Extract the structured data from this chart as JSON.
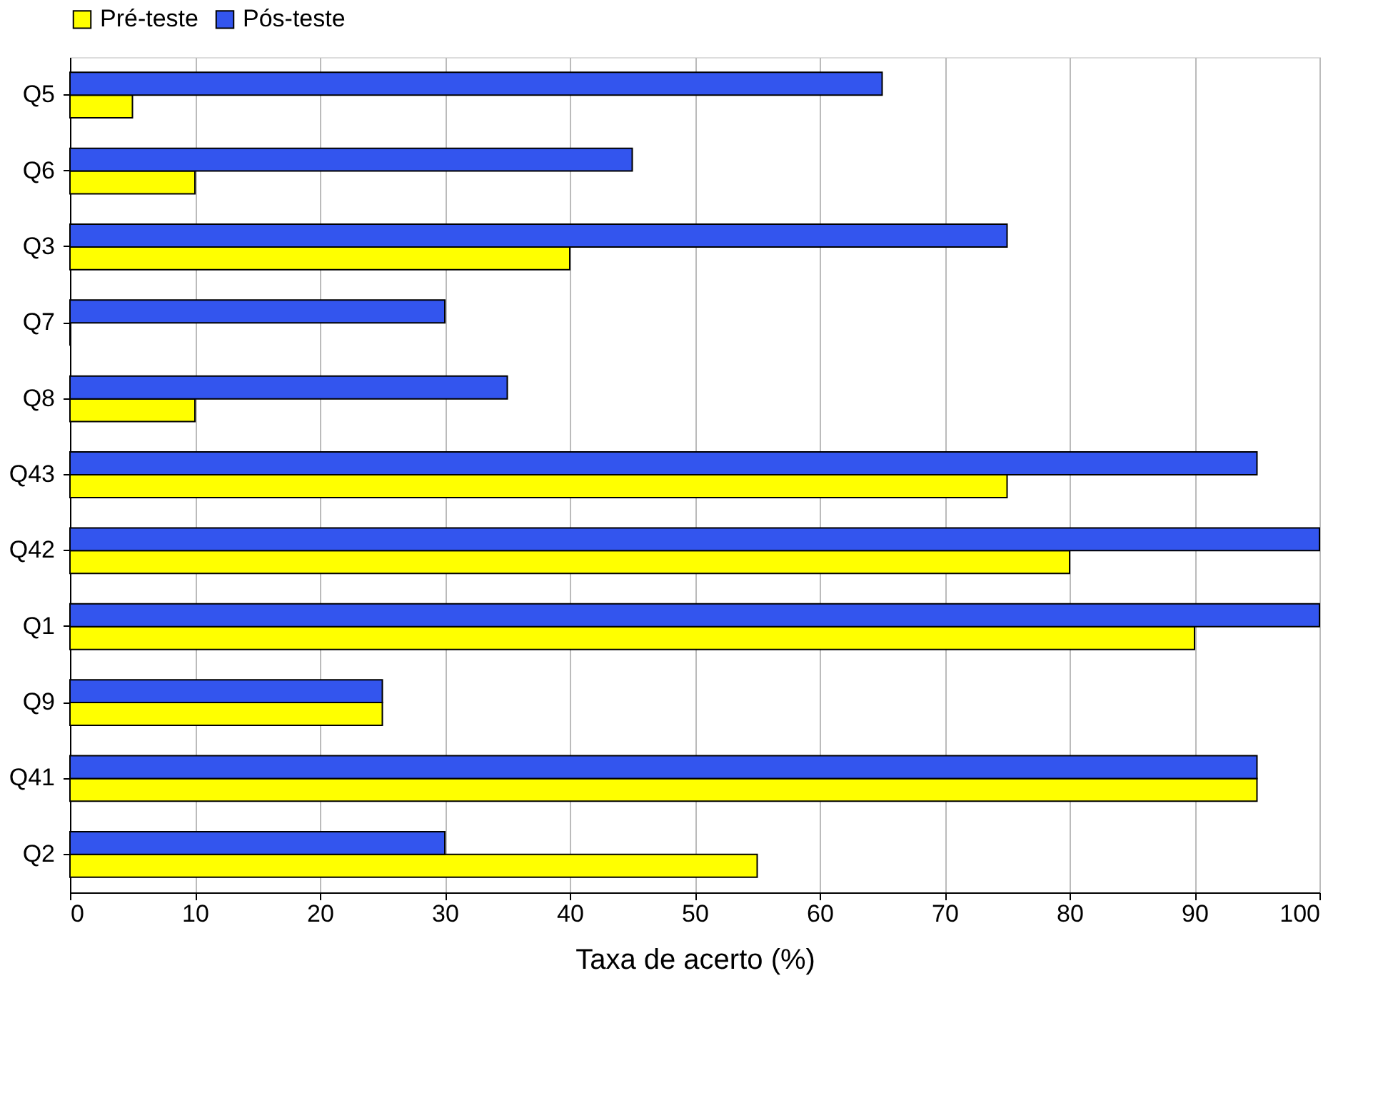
{
  "chart_data": {
    "type": "bar",
    "orientation": "horizontal",
    "xlabel": "Taxa de acerto (%)",
    "categories": [
      "Q5",
      "Q6",
      "Q3",
      "Q7",
      "Q8",
      "Q43",
      "Q42",
      "Q1",
      "Q9",
      "Q41",
      "Q2"
    ],
    "series": [
      {
        "name": "Pré-teste",
        "color": "#ffff00",
        "values": [
          5,
          10,
          40,
          0,
          10,
          75,
          80,
          90,
          25,
          95,
          55
        ]
      },
      {
        "name": "Pós-teste",
        "color": "#3355ee",
        "values": [
          65,
          45,
          75,
          30,
          35,
          95,
          100,
          100,
          25,
          95,
          30
        ]
      }
    ],
    "xlim": [
      0,
      100
    ],
    "xticks": [
      0,
      10,
      20,
      30,
      40,
      50,
      60,
      70,
      80,
      90,
      100
    ],
    "grid": "x",
    "legend": "top"
  }
}
